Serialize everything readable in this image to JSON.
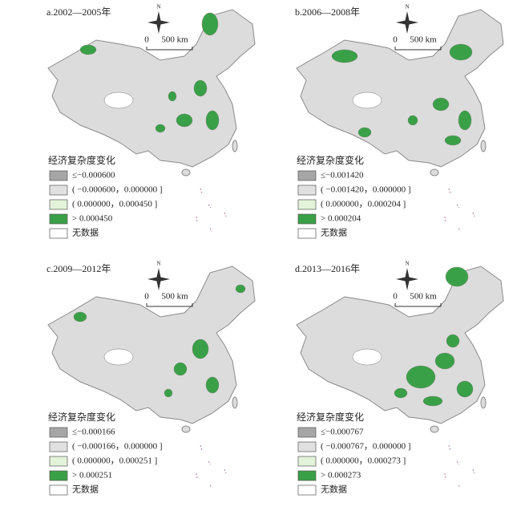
{
  "panels": [
    {
      "title": "a.2002—2005年",
      "compass": "N",
      "scale": {
        "zero": "0",
        "label": "500 km"
      },
      "legend": {
        "title": "经济复杂度变化",
        "items": [
          "≤−0.000600",
          "( −0.000600，0.000000 ]",
          "( 0.000000，0.000450 ]",
          "> 0.000450",
          "无数据"
        ]
      }
    },
    {
      "title": "b.2006—2008年",
      "compass": "N",
      "scale": {
        "zero": "0",
        "label": "500 km"
      },
      "legend": {
        "title": "经济复杂度变化",
        "items": [
          "≤−0.001420",
          "( −0.001420，0.000000 ]",
          "( 0.000000，0.000204 ]",
          "> 0.000204",
          "无数据"
        ]
      }
    },
    {
      "title": "c.2009—2012年",
      "compass": "N",
      "scale": {
        "zero": "0",
        "label": "500 km"
      },
      "legend": {
        "title": "经济复杂度变化",
        "items": [
          "≤−0.000166",
          "( −0.000166，0.000000 ]",
          "( 0.000000，0.000251 ]",
          "> 0.000251",
          "无数据"
        ]
      }
    },
    {
      "title": "d.2013—2016年",
      "compass": "N",
      "scale": {
        "zero": "0",
        "label": "500 km"
      },
      "legend": {
        "title": "经济复杂度变化",
        "items": [
          "≤−0.000767",
          "( −0.000767，0.000000 ]",
          "( 0.000000，0.000273 ]",
          "> 0.000273",
          "无数据"
        ]
      }
    }
  ]
}
